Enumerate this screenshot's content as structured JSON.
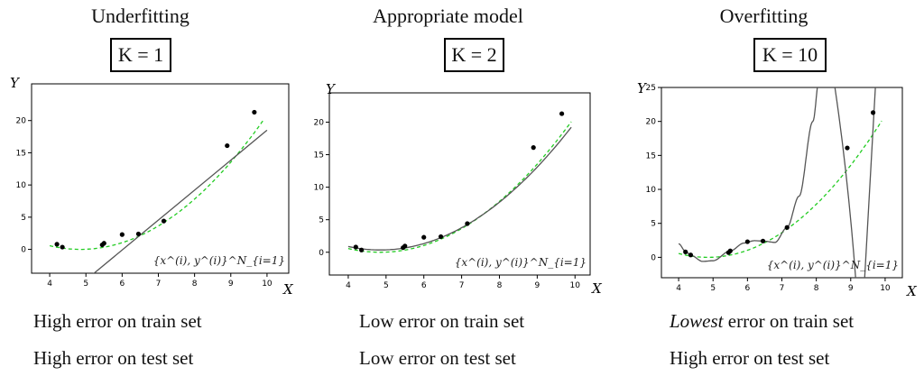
{
  "panels": [
    {
      "title": "Underfitting",
      "k_label": "K = 1",
      "caption1_em": "",
      "caption1_rest": "High error on train set",
      "caption2": "High error on test set"
    },
    {
      "title": "Appropriate model",
      "k_label": "K = 2",
      "caption1_em": "",
      "caption1_rest": "Low error on train set",
      "caption2": "Low error on test set"
    },
    {
      "title": "Overfitting",
      "k_label": "K = 10",
      "caption1_em": "Lowest",
      "caption1_rest": " error on train set",
      "caption2": "High error on test set"
    }
  ],
  "chart_data": [
    {
      "type": "scatter",
      "xlabel": "X",
      "ylabel": "Y",
      "xlim": [
        3.5,
        10.6
      ],
      "ylim": [
        -3.7,
        25.7
      ],
      "xticks": [
        4,
        5,
        6,
        7,
        8,
        9,
        10
      ],
      "yticks": [
        0,
        5,
        10,
        15,
        20
      ],
      "points": [
        [
          4.2,
          0.8
        ],
        [
          4.35,
          0.35
        ],
        [
          5.45,
          0.7
        ],
        [
          5.5,
          0.95
        ],
        [
          6.0,
          2.3
        ],
        [
          6.45,
          2.4
        ],
        [
          7.15,
          4.4
        ],
        [
          8.9,
          16.1
        ],
        [
          9.65,
          21.3
        ]
      ],
      "true_curve_color": "#22cc22",
      "fit_color": "#555555",
      "fit": {
        "kind": "line",
        "a": -28.0,
        "b": 4.65
      },
      "annotation": "{x^(i), y^(i)}^N_{i=1}"
    },
    {
      "type": "scatter",
      "xlabel": "X",
      "ylabel": "Y",
      "xlim": [
        3.5,
        10.4
      ],
      "ylim": [
        -3.5,
        24.5
      ],
      "xticks": [
        4,
        5,
        6,
        7,
        8,
        9,
        10
      ],
      "yticks": [
        0,
        5,
        10,
        15,
        20
      ],
      "points": [
        [
          4.2,
          0.8
        ],
        [
          4.35,
          0.35
        ],
        [
          5.45,
          0.7
        ],
        [
          5.5,
          0.95
        ],
        [
          6.0,
          2.3
        ],
        [
          6.45,
          2.4
        ],
        [
          7.15,
          4.4
        ],
        [
          8.9,
          16.1
        ],
        [
          9.65,
          21.3
        ]
      ],
      "true_curve_color": "#22cc22",
      "fit_color": "#555555",
      "fit": {
        "kind": "quad"
      },
      "annotation": "{x^(i), y^(i)}^N_{i=1}"
    },
    {
      "type": "scatter",
      "xlabel": "X",
      "ylabel": "Y",
      "xlim": [
        3.5,
        10.5
      ],
      "ylim": [
        -3.0,
        25.0
      ],
      "xticks": [
        4,
        5,
        6,
        7,
        8,
        9,
        10
      ],
      "yticks": [
        0,
        5,
        10,
        15,
        20,
        25
      ],
      "points": [
        [
          4.2,
          0.8
        ],
        [
          4.35,
          0.35
        ],
        [
          5.45,
          0.7
        ],
        [
          5.5,
          0.95
        ],
        [
          6.0,
          2.3
        ],
        [
          6.45,
          2.4
        ],
        [
          7.15,
          4.4
        ],
        [
          8.9,
          16.1
        ],
        [
          9.65,
          21.3
        ]
      ],
      "true_curve_color": "#22cc22",
      "fit_color": "#555555",
      "fit": {
        "kind": "wiggle"
      },
      "annotation": "{x^(i), y^(i)}^N_{i=1}"
    }
  ]
}
